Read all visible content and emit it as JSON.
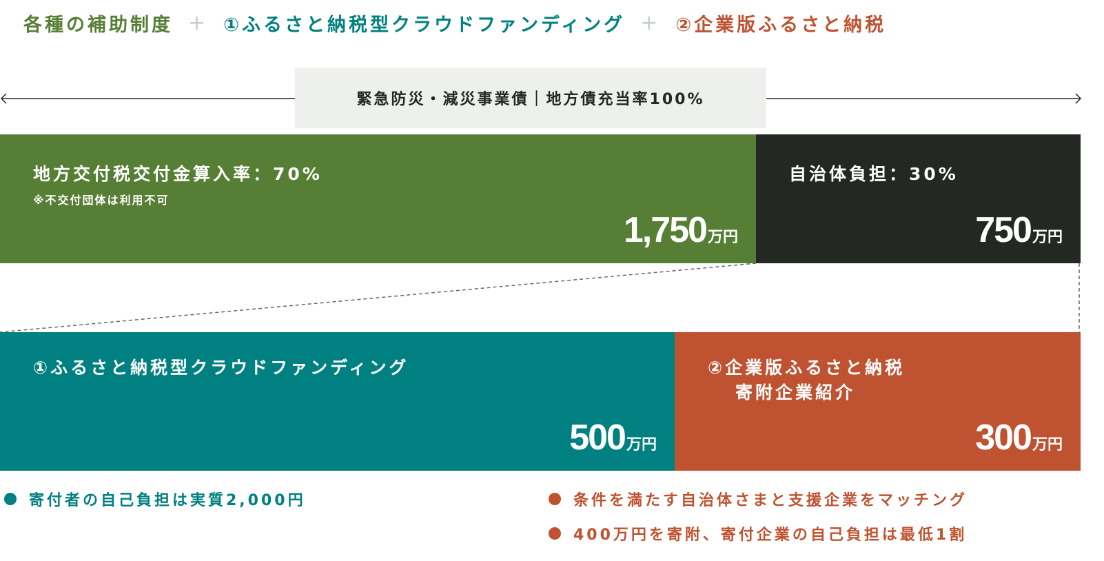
{
  "colors": {
    "green": "#567f35",
    "dark": "#232823",
    "teal": "#008080",
    "orange": "#bf5230",
    "gray_box": "#eef0ed",
    "plus": "#c5cdc8"
  },
  "header": {
    "part1": "各種の補助制度",
    "plus": "+",
    "part2": "①ふるさと納税型クラウドファンディング",
    "part3": "②企業版ふるさと納税"
  },
  "bond": {
    "label": "緊急防災・減災事業債｜地方債充当率100%"
  },
  "top_blocks": [
    {
      "label": "地方交付税交付金算入率：70%",
      "note": "※不交付団体は利用不可",
      "amount": "1,750",
      "unit": "万円"
    },
    {
      "label": "自治体負担：30%",
      "amount": "750",
      "unit": "万円"
    }
  ],
  "bottom_blocks": [
    {
      "label": "①ふるさと納税型クラウドファンディング",
      "amount": "500",
      "unit": "万円"
    },
    {
      "label": "②企業版ふるさと納税",
      "label2": "寄附企業紹介",
      "amount": "300",
      "unit": "万円"
    }
  ],
  "bullets_left": [
    "寄付者の自己負担は実質2,000円"
  ],
  "bullets_right": [
    "条件を満たす自治体さまと支援企業をマッチング",
    "400万円を寄附、寄付企業の自己負担は最低1割"
  ]
}
